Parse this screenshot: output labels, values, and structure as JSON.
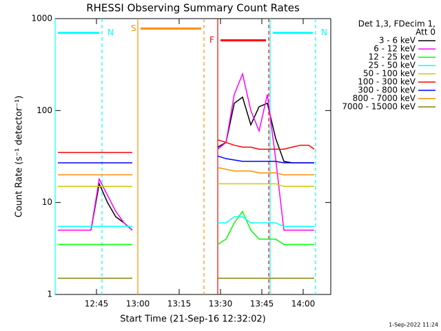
{
  "chart_data": {
    "type": "line",
    "title": "RHESSI Observing Summary Count Rates",
    "xlabel": "Start Time (21-Sep-16 12:32:02)",
    "ylabel": "Count Rate (s⁻¹ detector⁻¹)",
    "footer": "1-Sep-2022 11:24",
    "legend_title": [
      "Det 1,3, FDecim 1,",
      "Att 0"
    ],
    "legend": "right",
    "log_y": true,
    "x": [
      751,
      754,
      757,
      760,
      763,
      766,
      769,
      772,
      775,
      778,
      790,
      809,
      812,
      815,
      818,
      821,
      824,
      827,
      830,
      833,
      836,
      839,
      842,
      844
    ],
    "xlim": [
      750,
      850
    ],
    "xticks": [
      {
        "value": 765,
        "label": "12:45"
      },
      {
        "value": 780,
        "label": "13:00"
      },
      {
        "value": 795,
        "label": "13:15"
      },
      {
        "value": 810,
        "label": "13:30"
      },
      {
        "value": 825,
        "label": "13:45"
      },
      {
        "value": 840,
        "label": "14:00"
      }
    ],
    "ylim": [
      1,
      1000
    ],
    "yticks": [
      1,
      10,
      100,
      1000
    ],
    "series": [
      {
        "name": "3 - 6 keV",
        "color": "#000000",
        "values": [
          5,
          5,
          5,
          5,
          5,
          16,
          10,
          7,
          6,
          5,
          null,
          40,
          45,
          120,
          140,
          70,
          110,
          120,
          50,
          28,
          27,
          27,
          27,
          27
        ]
      },
      {
        "name": "6 - 12 keV",
        "color": "#ff00ff",
        "values": [
          5,
          5,
          5,
          5,
          5,
          18,
          12,
          8,
          6,
          5,
          null,
          38,
          45,
          150,
          250,
          100,
          60,
          150,
          30,
          5,
          5,
          5,
          5,
          5
        ]
      },
      {
        "name": "12 - 25 keV",
        "color": "#00ff00",
        "values": [
          3.5,
          3.5,
          3.5,
          3.5,
          3.5,
          3.5,
          3.5,
          3.5,
          3.5,
          3.5,
          null,
          3.5,
          4,
          6,
          8,
          5,
          4,
          4,
          4,
          3.5,
          3.5,
          3.5,
          3.5,
          3.5
        ]
      },
      {
        "name": "25 - 50 keV",
        "color": "#00ffff",
        "values": [
          5.5,
          5.5,
          5.5,
          5.5,
          5.5,
          5.5,
          5.5,
          5.5,
          5.5,
          5.5,
          null,
          6,
          6,
          7,
          7,
          6,
          6,
          6,
          6,
          5.5,
          5.5,
          5.5,
          5.5,
          5.5
        ]
      },
      {
        "name": "50 - 100 keV",
        "color": "#cccc00",
        "values": [
          15,
          15,
          15,
          15,
          15,
          15,
          15,
          15,
          15,
          15,
          null,
          16,
          16,
          16,
          16,
          16,
          16,
          16,
          16,
          15,
          15,
          15,
          15,
          15
        ]
      },
      {
        "name": "100 - 300 keV",
        "color": "#ff0000",
        "values": [
          35,
          35,
          35,
          35,
          35,
          35,
          35,
          35,
          35,
          35,
          null,
          48,
          45,
          42,
          40,
          40,
          38,
          38,
          38,
          38,
          40,
          42,
          42,
          38
        ]
      },
      {
        "name": "300 - 800 keV",
        "color": "#0000ff",
        "values": [
          27,
          27,
          27,
          27,
          27,
          27,
          27,
          27,
          27,
          27,
          null,
          32,
          30,
          29,
          28,
          28,
          28,
          28,
          28,
          27,
          27,
          27,
          27,
          27
        ]
      },
      {
        "name": "800 - 7000 keV",
        "color": "#ff8c00",
        "values": [
          20,
          20,
          20,
          20,
          20,
          20,
          20,
          20,
          20,
          20,
          null,
          24,
          23,
          22,
          22,
          22,
          21,
          21,
          21,
          20,
          20,
          20,
          20,
          20
        ]
      },
      {
        "name": "7000 - 15000 keV",
        "color": "#808000",
        "values": [
          1.5,
          1.5,
          1.5,
          1.5,
          1.5,
          1.5,
          1.5,
          1.5,
          1.5,
          1.5,
          null,
          1.5,
          1.5,
          1.5,
          1.5,
          1.5,
          1.5,
          1.5,
          1.5,
          1.5,
          1.5,
          1.5,
          1.5,
          1.5
        ]
      }
    ],
    "annotations": [
      {
        "label": "N",
        "color": "#00ffff",
        "x": [
          750,
          767
        ],
        "y": 700
      },
      {
        "label": "S",
        "color": "#ff8c00",
        "x": [
          780,
          804
        ],
        "y": 780
      },
      {
        "label": "F",
        "color": "#ff0000",
        "x": [
          809,
          827.5
        ],
        "y": 580
      },
      {
        "label": "N",
        "color": "#00ffff",
        "x": [
          828,
          844.5
        ],
        "y": 700
      }
    ]
  }
}
